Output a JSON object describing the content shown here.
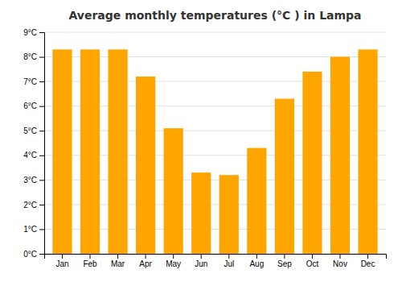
{
  "chart_data": {
    "type": "bar",
    "title": "Average monthly temperatures (°C ) in Lampa",
    "categories": [
      "Jan",
      "Feb",
      "Mar",
      "Apr",
      "May",
      "Jun",
      "Jul",
      "Aug",
      "Sep",
      "Oct",
      "Nov",
      "Dec"
    ],
    "values": [
      8.3,
      8.3,
      8.3,
      7.2,
      5.1,
      3.3,
      3.2,
      4.3,
      6.3,
      7.4,
      8.0,
      8.3
    ],
    "color": "#FFA500",
    "ylim": [
      0,
      9
    ],
    "yticks": [
      {
        "value": 0,
        "label": "0°C"
      },
      {
        "value": 1,
        "label": "1°C"
      },
      {
        "value": 2,
        "label": "2°C"
      },
      {
        "value": 3,
        "label": "3°C"
      },
      {
        "value": 4,
        "label": "4°C"
      },
      {
        "value": 5,
        "label": "5°C"
      },
      {
        "value": 6,
        "label": "6°C"
      },
      {
        "value": 7,
        "label": "7°C"
      },
      {
        "value": 8,
        "label": "8°C"
      },
      {
        "value": 9,
        "label": "9°C"
      }
    ],
    "grid": true
  }
}
